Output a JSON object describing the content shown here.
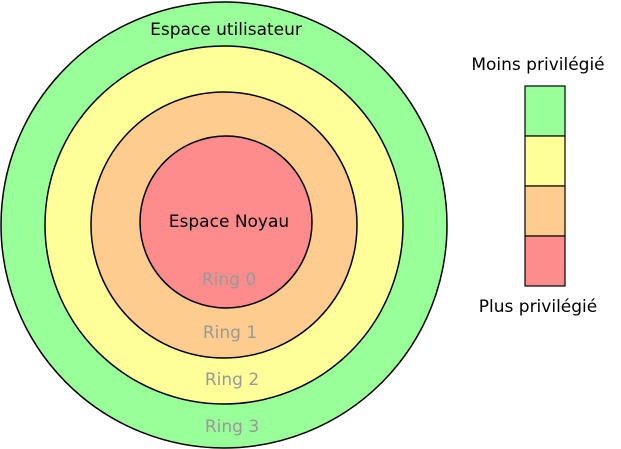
{
  "rings": [
    {
      "id": "ring3",
      "label": "Ring 3",
      "color": "#99ff99"
    },
    {
      "id": "ring2",
      "label": "Ring 2",
      "color": "#ffff99"
    },
    {
      "id": "ring1",
      "label": "Ring 1",
      "color": "#ffcc8f"
    },
    {
      "id": "ring0",
      "label": "Ring 0",
      "color": "#ff8c8c"
    }
  ],
  "labels": {
    "user_space": "Espace utilisateur",
    "kernel_space": "Espace Noyau"
  },
  "legend": {
    "top_label": "Moins privilégié",
    "bottom_label": "Plus privilégié",
    "colors": [
      "#99ff99",
      "#ffff99",
      "#ffcc8f",
      "#ff8c8c"
    ]
  }
}
